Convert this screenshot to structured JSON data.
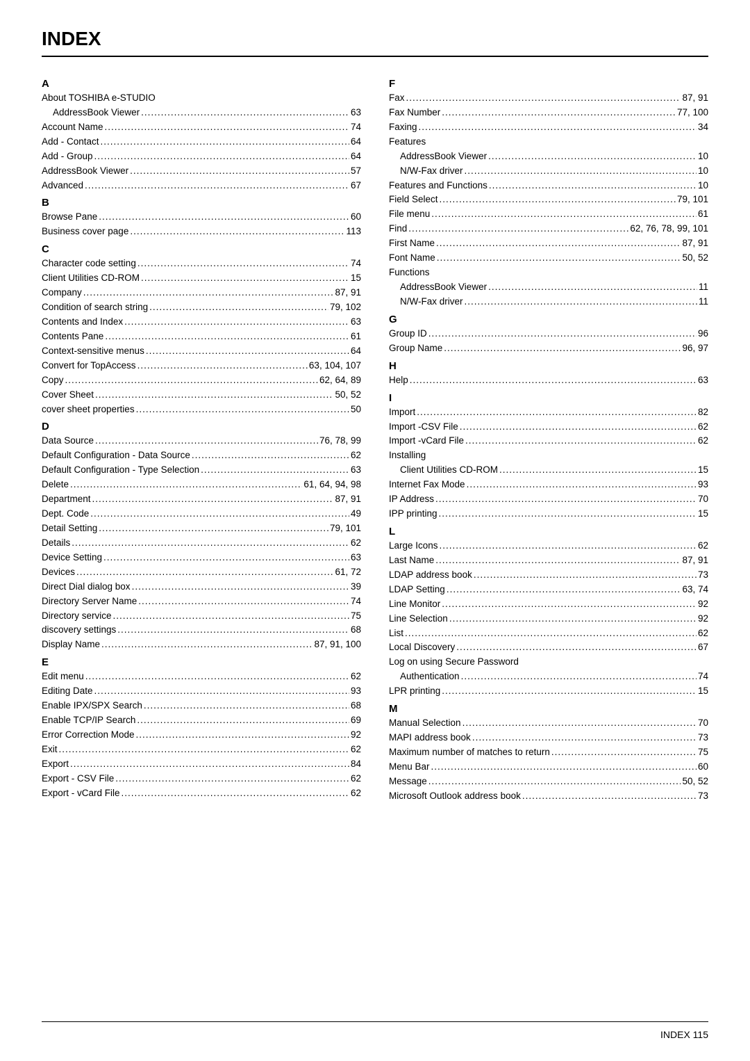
{
  "title": "INDEX",
  "footer": "INDEX    115",
  "leftColumn": [
    {
      "type": "letter",
      "text": "A"
    },
    {
      "type": "header",
      "text": "About TOSHIBA e-STUDIO"
    },
    {
      "type": "sub",
      "label": "AddressBook Viewer",
      "page": "63"
    },
    {
      "type": "entry",
      "label": "Account Name",
      "page": "74"
    },
    {
      "type": "entry",
      "label": "Add - Contact",
      "page": "64"
    },
    {
      "type": "entry",
      "label": "Add - Group",
      "page": "64"
    },
    {
      "type": "entry",
      "label": "AddressBook Viewer",
      "page": "57"
    },
    {
      "type": "entry",
      "label": "Advanced",
      "page": "67"
    },
    {
      "type": "letter",
      "text": "B"
    },
    {
      "type": "entry",
      "label": "Browse Pane",
      "page": "60"
    },
    {
      "type": "entry",
      "label": "Business cover page",
      "page": "113"
    },
    {
      "type": "letter",
      "text": "C"
    },
    {
      "type": "entry",
      "label": "Character code setting",
      "page": "74"
    },
    {
      "type": "entry",
      "label": "Client Utilities CD-ROM",
      "page": "15"
    },
    {
      "type": "entry",
      "label": "Company",
      "page": "87, 91"
    },
    {
      "type": "entry",
      "label": "Condition of search string",
      "page": "79, 102"
    },
    {
      "type": "entry",
      "label": "Contents and Index",
      "page": "63"
    },
    {
      "type": "entry",
      "label": "Contents Pane",
      "page": "61"
    },
    {
      "type": "entry",
      "label": "Context-sensitive menus",
      "page": "64"
    },
    {
      "type": "entry",
      "label": "Convert for TopAccess",
      "page": "63, 104, 107"
    },
    {
      "type": "entry",
      "label": "Copy",
      "page": "62, 64, 89"
    },
    {
      "type": "entry",
      "label": "Cover Sheet",
      "page": "50, 52"
    },
    {
      "type": "entry",
      "label": "cover sheet properties",
      "page": "50"
    },
    {
      "type": "letter",
      "text": "D"
    },
    {
      "type": "entry",
      "label": "Data Source",
      "page": "76, 78, 99"
    },
    {
      "type": "entry",
      "label": "Default Configuration - Data Source",
      "page": "62"
    },
    {
      "type": "entry",
      "label": "Default Configuration - Type Selection",
      "page": "63"
    },
    {
      "type": "entry",
      "label": "Delete",
      "page": "61, 64, 94, 98"
    },
    {
      "type": "entry",
      "label": "Department",
      "page": "87, 91"
    },
    {
      "type": "entry",
      "label": "Dept. Code",
      "page": "49"
    },
    {
      "type": "entry",
      "label": "Detail Setting",
      "page": "79, 101"
    },
    {
      "type": "entry",
      "label": "Details",
      "page": "62"
    },
    {
      "type": "entry",
      "label": "Device Setting",
      "page": "63"
    },
    {
      "type": "entry",
      "label": "Devices",
      "page": "61, 72"
    },
    {
      "type": "entry",
      "label": "Direct Dial dialog box",
      "page": "39"
    },
    {
      "type": "entry",
      "label": "Directory Server Name",
      "page": "74"
    },
    {
      "type": "entry",
      "label": "Directory service",
      "page": "75"
    },
    {
      "type": "entry",
      "label": "discovery settings",
      "page": "68"
    },
    {
      "type": "entry",
      "label": "Display Name",
      "page": "87, 91, 100"
    },
    {
      "type": "letter",
      "text": "E"
    },
    {
      "type": "entry",
      "label": "Edit menu",
      "page": "62"
    },
    {
      "type": "entry",
      "label": "Editing Date",
      "page": "93"
    },
    {
      "type": "entry",
      "label": "Enable IPX/SPX Search",
      "page": "68"
    },
    {
      "type": "entry",
      "label": "Enable TCP/IP Search",
      "page": "69"
    },
    {
      "type": "entry",
      "label": "Error Correction Mode",
      "page": "92"
    },
    {
      "type": "entry",
      "label": "Exit",
      "page": "62"
    },
    {
      "type": "entry",
      "label": "Export",
      "page": "84"
    },
    {
      "type": "entry",
      "label": "Export - CSV File",
      "page": "62"
    },
    {
      "type": "entry",
      "label": "Export - vCard File",
      "page": "62"
    }
  ],
  "rightColumn": [
    {
      "type": "letter",
      "text": "F"
    },
    {
      "type": "entry",
      "label": "Fax",
      "page": "87, 91"
    },
    {
      "type": "entry",
      "label": "Fax Number",
      "page": "77, 100"
    },
    {
      "type": "entry",
      "label": "Faxing",
      "page": "34"
    },
    {
      "type": "header",
      "text": "Features"
    },
    {
      "type": "sub",
      "label": "AddressBook Viewer",
      "page": "10"
    },
    {
      "type": "sub",
      "label": "N/W-Fax driver",
      "page": "10"
    },
    {
      "type": "entry",
      "label": "Features and Functions",
      "page": "10"
    },
    {
      "type": "entry",
      "label": "Field Select",
      "page": "79, 101"
    },
    {
      "type": "entry",
      "label": "File menu",
      "page": "61"
    },
    {
      "type": "entry",
      "label": "Find",
      "page": "62, 76, 78, 99, 101"
    },
    {
      "type": "entry",
      "label": "First Name",
      "page": "87, 91"
    },
    {
      "type": "entry",
      "label": "Font Name",
      "page": "50, 52"
    },
    {
      "type": "header",
      "text": "Functions"
    },
    {
      "type": "sub",
      "label": "AddressBook Viewer",
      "page": "11"
    },
    {
      "type": "sub",
      "label": "N/W-Fax driver",
      "page": "11"
    },
    {
      "type": "letter",
      "text": "G"
    },
    {
      "type": "entry",
      "label": "Group ID",
      "page": "96"
    },
    {
      "type": "entry",
      "label": "Group Name",
      "page": "96, 97"
    },
    {
      "type": "letter",
      "text": "H"
    },
    {
      "type": "entry",
      "label": "Help",
      "page": "63"
    },
    {
      "type": "letter",
      "text": "I"
    },
    {
      "type": "entry",
      "label": "Import",
      "page": "82"
    },
    {
      "type": "entry",
      "label": "Import -CSV File",
      "page": "62"
    },
    {
      "type": "entry",
      "label": "Import -vCard File",
      "page": "62"
    },
    {
      "type": "header",
      "text": "Installing"
    },
    {
      "type": "sub",
      "label": "Client Utilities CD-ROM",
      "page": "15"
    },
    {
      "type": "entry",
      "label": "Internet Fax Mode",
      "page": "93"
    },
    {
      "type": "entry",
      "label": "IP Address",
      "page": "70"
    },
    {
      "type": "entry",
      "label": "IPP printing",
      "page": "15"
    },
    {
      "type": "letter",
      "text": "L"
    },
    {
      "type": "entry",
      "label": "Large Icons",
      "page": "62"
    },
    {
      "type": "entry",
      "label": "Last Name",
      "page": "87, 91"
    },
    {
      "type": "entry",
      "label": "LDAP address book",
      "page": "73"
    },
    {
      "type": "entry",
      "label": "LDAP Setting",
      "page": "63, 74"
    },
    {
      "type": "entry",
      "label": "Line Monitor",
      "page": "92"
    },
    {
      "type": "entry",
      "label": "Line Selection",
      "page": "92"
    },
    {
      "type": "entry",
      "label": "List",
      "page": "62"
    },
    {
      "type": "entry",
      "label": "Local Discovery",
      "page": "67"
    },
    {
      "type": "header",
      "text": "Log on using Secure Password"
    },
    {
      "type": "sub",
      "label": "Authentication",
      "page": "74"
    },
    {
      "type": "entry",
      "label": "LPR printing",
      "page": "15"
    },
    {
      "type": "letter",
      "text": "M"
    },
    {
      "type": "entry",
      "label": "Manual Selection",
      "page": "70"
    },
    {
      "type": "entry",
      "label": "MAPI address book",
      "page": "73"
    },
    {
      "type": "entry",
      "label": "Maximum number of matches to return",
      "page": "75"
    },
    {
      "type": "entry",
      "label": "Menu Bar",
      "page": "60"
    },
    {
      "type": "entry",
      "label": "Message",
      "page": "50, 52"
    },
    {
      "type": "entry",
      "label": "Microsoft Outlook address book",
      "page": "73"
    }
  ]
}
